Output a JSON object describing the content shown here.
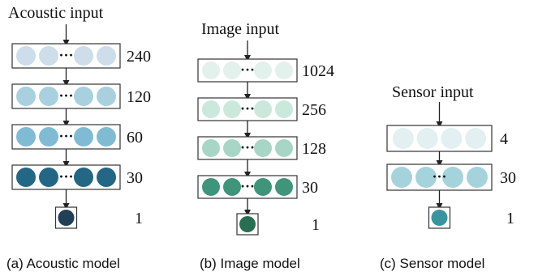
{
  "panels": [
    {
      "input_label": "Acoustic input",
      "caption": "(a) Acoustic model",
      "layers": [
        {
          "size": "240",
          "color": "#cddde9",
          "ellipsis": true
        },
        {
          "size": "120",
          "color": "#a9d0de",
          "ellipsis": true
        },
        {
          "size": "60",
          "color": "#7fbcd4",
          "ellipsis": true
        },
        {
          "size": "30",
          "color": "#236784",
          "ellipsis": true
        }
      ],
      "output": {
        "size": "1",
        "color": "#213f57"
      }
    },
    {
      "input_label": "Image input",
      "caption": "(b) Image model",
      "layers": [
        {
          "size": "1024",
          "color": "#e3f1ec",
          "ellipsis": true
        },
        {
          "size": "256",
          "color": "#cbe8dd",
          "ellipsis": true
        },
        {
          "size": "128",
          "color": "#a7d6c6",
          "ellipsis": true
        },
        {
          "size": "30",
          "color": "#3f957a",
          "ellipsis": true
        }
      ],
      "output": {
        "size": "1",
        "color": "#276e52"
      }
    },
    {
      "input_label": "Sensor input",
      "caption": "(c) Sensor model",
      "layers": [
        {
          "size": "4",
          "color": "#e3f0f2",
          "ellipsis": false
        },
        {
          "size": "30",
          "color": "#a5d3dc",
          "ellipsis": true
        }
      ],
      "output": {
        "size": "1",
        "color": "#3a949f"
      }
    }
  ],
  "ellipsis_text": "···"
}
